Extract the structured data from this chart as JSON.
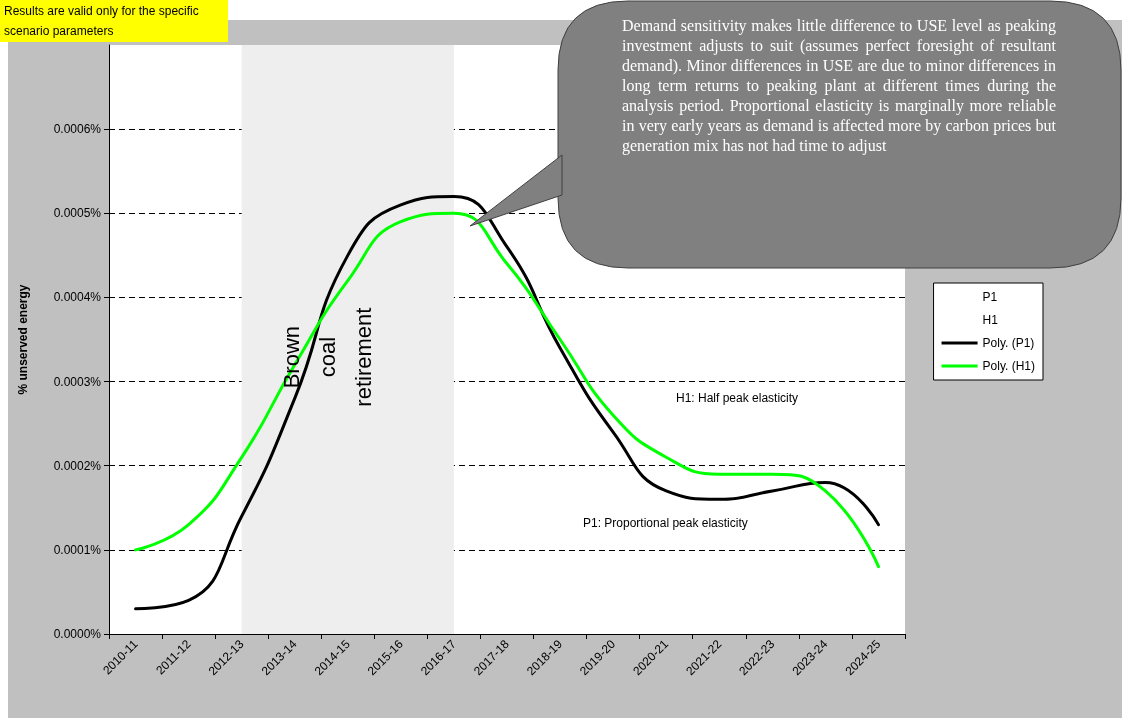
{
  "chart_data": {
    "type": "line",
    "ylabel": "% unserved energy",
    "categories": [
      "2010-11",
      "2011-12",
      "2012-13",
      "2013-14",
      "2014-15",
      "2015-16",
      "2016-17",
      "2017-18",
      "2018-19",
      "2019-20",
      "2020-21",
      "2021-22",
      "2022-23",
      "2023-24",
      "2024-25"
    ],
    "ylim": [
      0,
      0.0007
    ],
    "yticks": [
      {
        "value": 0,
        "label": "0.0000%"
      },
      {
        "value": 0.0001,
        "label": "0.0001%"
      },
      {
        "value": 0.0002,
        "label": "0.0002%"
      },
      {
        "value": 0.0003,
        "label": "0.0003%"
      },
      {
        "value": 0.0004,
        "label": "0.0004%"
      },
      {
        "value": 0.0005,
        "label": "0.0005%"
      },
      {
        "value": 0.0006,
        "label": "0.0006%"
      }
    ],
    "grid": "y",
    "legend": "right",
    "marker": "none",
    "line_style": "solid",
    "series": [
      {
        "name": "P1",
        "values": [
          null,
          null,
          null,
          null,
          null,
          null,
          null,
          null,
          null,
          null,
          null,
          null,
          null,
          null,
          null
        ]
      },
      {
        "name": "H1",
        "values": [
          null,
          null,
          null,
          null,
          null,
          null,
          null,
          null,
          null,
          null,
          null,
          null,
          null,
          null,
          null
        ]
      },
      {
        "name": "Poly. (P1)",
        "color": "#000000",
        "values": [
          3e-05,
          4e-05,
          0.00014,
          0.00028,
          0.00045,
          0.00051,
          0.00052,
          0.00046,
          0.00034,
          0.00024,
          0.00017,
          0.00016,
          0.00017,
          0.00018,
          0.00013
        ]
      },
      {
        "name": "Poly. (H1)",
        "color": "#00ff00",
        "values": [
          0.0001,
          0.00013,
          0.00021,
          0.00032,
          0.00042,
          0.00049,
          0.0005,
          0.00044,
          0.00035,
          0.00026,
          0.00021,
          0.00019,
          0.00019,
          0.00017,
          8e-05
        ]
      }
    ],
    "bands": [
      {
        "axis": "x",
        "from": "2012-13",
        "to": "2016-17",
        "label": "Brown coal retirement",
        "color": "#eeeeee"
      }
    ],
    "annotations": [
      "Results are valid only for the specific scenario parameters",
      "Demand sensitivity makes little difference to USE level as peaking investment adjusts to suit (assumes perfect foresight of resultant demand). Minor differences in USE are due to minor differences in long term returns to peaking plant at different times during the analysis period. Proportional elasticity is marginally more reliable in very early years as demand is affected more by carbon prices but generation mix has not had time to adjust",
      "H1: Half peak elasticity",
      "P1: Proportional peak elasticity"
    ]
  }
}
